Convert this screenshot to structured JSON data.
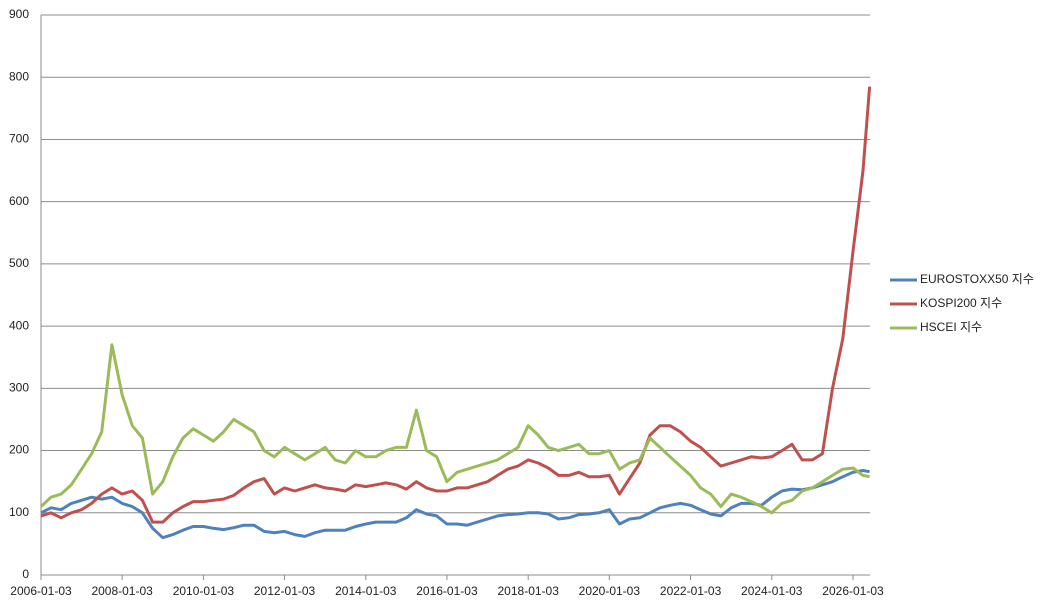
{
  "chart_data": {
    "type": "line",
    "x": [
      "2006-01-03",
      "2006-04-03",
      "2006-07-03",
      "2006-10-03",
      "2007-01-03",
      "2007-04-03",
      "2007-07-03",
      "2007-10-03",
      "2008-01-03",
      "2008-04-03",
      "2008-07-03",
      "2008-10-03",
      "2009-01-03",
      "2009-04-03",
      "2009-07-03",
      "2009-10-03",
      "2010-01-03",
      "2010-04-03",
      "2010-07-03",
      "2010-10-03",
      "2011-01-03",
      "2011-04-03",
      "2011-07-03",
      "2011-10-03",
      "2012-01-03",
      "2012-04-03",
      "2012-07-03",
      "2012-10-03",
      "2013-01-03",
      "2013-04-03",
      "2013-07-03",
      "2013-10-03",
      "2014-01-03",
      "2014-04-03",
      "2014-07-03",
      "2014-10-03",
      "2015-01-03",
      "2015-04-03",
      "2015-07-03",
      "2015-10-03",
      "2016-01-03",
      "2016-04-03",
      "2016-07-03",
      "2016-10-03",
      "2017-01-03",
      "2017-04-03",
      "2017-07-03",
      "2017-10-03",
      "2018-01-03",
      "2018-04-03",
      "2018-07-03",
      "2018-10-03",
      "2019-01-03",
      "2019-04-03",
      "2019-07-03",
      "2019-10-03",
      "2020-01-03",
      "2020-04-03",
      "2020-07-03",
      "2020-10-03",
      "2021-01-03",
      "2021-04-03",
      "2021-07-03",
      "2021-10-03",
      "2022-01-03",
      "2022-04-03",
      "2022-07-03",
      "2022-10-03",
      "2023-01-03",
      "2023-04-03",
      "2023-07-03",
      "2023-10-03",
      "2024-01-03",
      "2024-04-03",
      "2024-07-03",
      "2024-10-03",
      "2025-01-03",
      "2025-04-03",
      "2025-07-03",
      "2025-10-03",
      "2026-01-03",
      "2026-04-03",
      "2026-06-01"
    ],
    "series": [
      {
        "name": "EUROSTOXX50 지수",
        "color": "#4f81bd",
        "values": [
          100,
          108,
          105,
          115,
          120,
          125,
          122,
          125,
          115,
          110,
          100,
          75,
          60,
          65,
          72,
          78,
          78,
          75,
          73,
          76,
          80,
          80,
          70,
          68,
          70,
          65,
          62,
          68,
          72,
          72,
          72,
          78,
          82,
          85,
          85,
          85,
          92,
          105,
          98,
          95,
          82,
          82,
          80,
          85,
          90,
          95,
          97,
          98,
          100,
          100,
          98,
          90,
          92,
          97,
          98,
          100,
          105,
          82,
          90,
          92,
          100,
          108,
          112,
          115,
          112,
          105,
          98,
          95,
          108,
          115,
          115,
          112,
          125,
          135,
          138,
          137,
          140,
          145,
          150,
          158,
          165,
          168,
          166
        ]
      },
      {
        "name": "KOSPI200 지수",
        "color": "#c0504d",
        "values": [
          95,
          100,
          92,
          100,
          105,
          115,
          130,
          140,
          130,
          135,
          120,
          85,
          85,
          100,
          110,
          118,
          118,
          120,
          122,
          128,
          140,
          150,
          155,
          130,
          140,
          135,
          140,
          145,
          140,
          138,
          135,
          145,
          142,
          145,
          148,
          145,
          138,
          150,
          140,
          135,
          135,
          140,
          140,
          145,
          150,
          160,
          170,
          175,
          185,
          180,
          172,
          160,
          160,
          165,
          158,
          158,
          160,
          130,
          155,
          180,
          225,
          240,
          240,
          230,
          215,
          205,
          190,
          175,
          180,
          185,
          190,
          188,
          190,
          200,
          210,
          185,
          185,
          195,
          300,
          380,
          520,
          650,
          785
        ]
      },
      {
        "name": "HSCEI 지수",
        "color": "#9bbb59",
        "values": [
          110,
          125,
          130,
          145,
          170,
          195,
          230,
          370,
          290,
          240,
          220,
          130,
          150,
          190,
          220,
          235,
          225,
          215,
          230,
          250,
          240,
          230,
          200,
          190,
          205,
          195,
          185,
          195,
          205,
          185,
          180,
          200,
          190,
          190,
          200,
          205,
          205,
          265,
          200,
          190,
          150,
          165,
          170,
          175,
          180,
          185,
          195,
          205,
          240,
          225,
          205,
          200,
          205,
          210,
          195,
          195,
          200,
          170,
          180,
          185,
          220,
          205,
          190,
          175,
          160,
          140,
          130,
          110,
          130,
          125,
          118,
          110,
          100,
          115,
          120,
          135,
          140,
          150,
          160,
          170,
          172,
          160,
          158
        ]
      }
    ],
    "xlim": [
      "2006-01-03",
      "2026-06-05"
    ],
    "xticks": [
      "2006-01-03",
      "2008-01-03",
      "2010-01-03",
      "2012-01-03",
      "2014-01-03",
      "2016-01-03",
      "2018-01-03",
      "2020-01-03",
      "2022-01-03",
      "2024-01-03",
      "2026-01-03"
    ],
    "ylim": [
      0,
      900
    ],
    "yticks": [
      0,
      100,
      200,
      300,
      400,
      500,
      600,
      700,
      800,
      900
    ],
    "grid": true,
    "legend": "right"
  }
}
